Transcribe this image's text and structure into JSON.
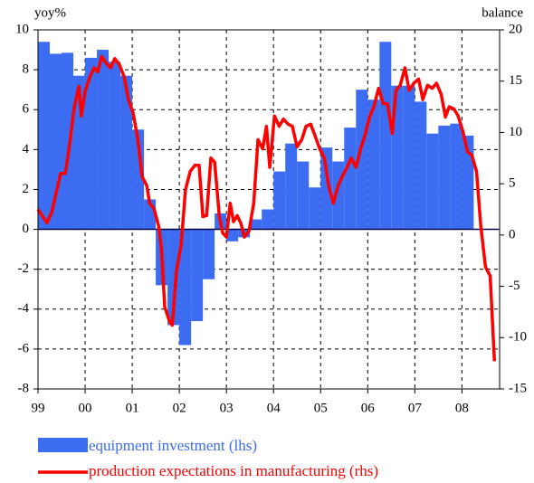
{
  "chart_data": {
    "type": "bar_line",
    "y_label": "yoy%",
    "y2_label": "balance",
    "xlim": [
      1999,
      2008.8
    ],
    "xticks": [
      {
        "value": 1999,
        "label": "99"
      },
      {
        "value": 2000,
        "label": "00"
      },
      {
        "value": 2001,
        "label": "01"
      },
      {
        "value": 2002,
        "label": "02"
      },
      {
        "value": 2003,
        "label": "03"
      },
      {
        "value": 2004,
        "label": "04"
      },
      {
        "value": 2005,
        "label": "05"
      },
      {
        "value": 2006,
        "label": "06"
      },
      {
        "value": 2007,
        "label": "07"
      },
      {
        "value": 2008,
        "label": "08"
      }
    ],
    "ylim": [
      -8,
      10
    ],
    "yticks": [
      -8,
      -6,
      -4,
      -2,
      0,
      2,
      4,
      6,
      8,
      10
    ],
    "y2lim": [
      -15,
      20
    ],
    "y2ticks": [
      -15,
      -10,
      -5,
      0,
      5,
      10,
      15,
      20
    ],
    "grid": true,
    "legend": "bottom-left",
    "series": [
      {
        "name": "equipment investment (lhs)",
        "type": "bar",
        "color": "#3b6cf2",
        "width": 0.25,
        "x": [
          1999,
          1999.25,
          1999.5,
          1999.75,
          2000,
          2000.25,
          2000.5,
          2000.75,
          2001,
          2001.25,
          2001.5,
          2001.75,
          2002,
          2002.25,
          2002.5,
          2002.75,
          2003,
          2003.25,
          2003.5,
          2003.75,
          2004,
          2004.25,
          2004.5,
          2004.75,
          2005,
          2005.25,
          2005.5,
          2005.75,
          2006,
          2006.25,
          2006.5,
          2006.75,
          2007,
          2007.25,
          2007.5,
          2007.75,
          2008
        ],
        "values": [
          9.4,
          8.8,
          8.85,
          7.7,
          8.6,
          9.0,
          8.4,
          7.7,
          5.0,
          1.5,
          -2.8,
          -4.8,
          -5.8,
          -4.6,
          -2.5,
          0.8,
          -0.6,
          -0.4,
          0.5,
          1.0,
          2.9,
          4.3,
          3.4,
          2.1,
          4.1,
          3.4,
          5.1,
          7.0,
          6.5,
          9.4,
          7.2,
          7.2,
          6.4,
          4.8,
          5.2,
          5.3,
          4.7
        ]
      },
      {
        "name": "production expectations in manufacturing (rhs)",
        "type": "line",
        "axis": "y2",
        "color": "#ff0000",
        "x": [
          1999.0,
          1999.1,
          1999.19,
          1999.29,
          1999.38,
          1999.48,
          1999.58,
          1999.67,
          1999.77,
          1999.87,
          1999.92,
          2000.0,
          2000.1,
          2000.19,
          2000.27,
          2000.35,
          2000.44,
          2000.54,
          2000.63,
          2000.73,
          2000.83,
          2000.92,
          2001.02,
          2001.12,
          2001.21,
          2001.31,
          2001.37,
          2001.46,
          2001.56,
          2001.62,
          2001.69,
          2001.79,
          2001.85,
          2001.94,
          2002.04,
          2002.13,
          2002.23,
          2002.33,
          2002.42,
          2002.5,
          2002.58,
          2002.67,
          2002.75,
          2002.85,
          2002.92,
          2003.0,
          2003.08,
          2003.15,
          2003.23,
          2003.31,
          2003.38,
          2003.48,
          2003.58,
          2003.67,
          2003.77,
          2003.85,
          2003.92,
          2004.02,
          2004.12,
          2004.21,
          2004.31,
          2004.4,
          2004.5,
          2004.6,
          2004.69,
          2004.79,
          2004.88,
          2004.98,
          2005.08,
          2005.17,
          2005.27,
          2005.37,
          2005.46,
          2005.56,
          2005.65,
          2005.75,
          2005.85,
          2005.94,
          2006.04,
          2006.13,
          2006.23,
          2006.33,
          2006.42,
          2006.52,
          2006.6,
          2006.69,
          2006.79,
          2006.88,
          2006.98,
          2007.08,
          2007.17,
          2007.27,
          2007.37,
          2007.46,
          2007.56,
          2007.65,
          2007.73,
          2007.83,
          2007.92,
          2008.02,
          2008.12,
          2008.21,
          2008.31,
          2008.4,
          2008.5,
          2008.6,
          2008.69
        ],
        "values": [
          2.5,
          1.8,
          1.2,
          2.2,
          4,
          6,
          6,
          8.8,
          12.5,
          14.5,
          11.6,
          14,
          15.4,
          16.3,
          15.9,
          17.4,
          16.8,
          16.3,
          17.2,
          16.6,
          15.4,
          13.2,
          11.9,
          9.3,
          5.7,
          4.8,
          3.1,
          2.6,
          0.9,
          -1.3,
          -7,
          -8.4,
          -8.8,
          -3.5,
          -0.9,
          4.4,
          6.2,
          6.8,
          6.8,
          1.8,
          1.9,
          7.5,
          7.1,
          1.8,
          0.2,
          -0.2,
          3.1,
          1.3,
          1.9,
          1.1,
          -0.2,
          0.4,
          3.1,
          9.3,
          8.4,
          10.6,
          6.6,
          11.6,
          10.6,
          11.3,
          10.8,
          10.6,
          8.6,
          9.3,
          10.6,
          10.8,
          9.7,
          8.4,
          7.5,
          4.8,
          3.1,
          4.8,
          5.7,
          6.6,
          7.5,
          6.6,
          8.4,
          9.7,
          11.5,
          12.5,
          14.3,
          12.8,
          12.8,
          9.9,
          14.1,
          14.6,
          16.3,
          14.1,
          14.8,
          15.2,
          13.2,
          14.6,
          14.3,
          14.8,
          13.7,
          11.5,
          12.5,
          12.3,
          11.6,
          10.1,
          8.1,
          7.8,
          6.2,
          0.9,
          -3.1,
          -4,
          -12.3
        ]
      }
    ]
  }
}
